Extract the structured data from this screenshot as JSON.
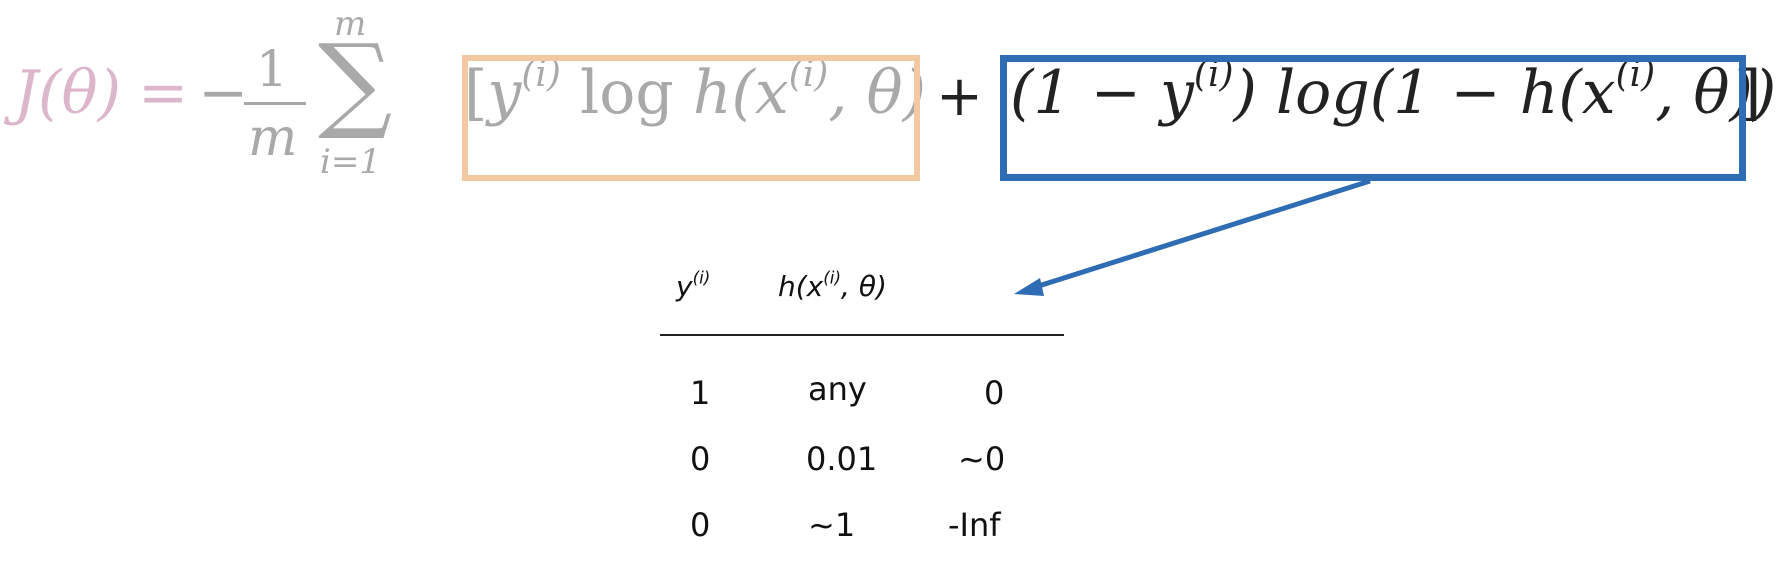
{
  "formula": {
    "lhs": "J(θ)",
    "equals": "=",
    "minus": "−",
    "frac_num": "1",
    "frac_den": "m",
    "sum_top": "m",
    "sum_symbol": "∑",
    "sum_bottom": "i=1",
    "term1": {
      "open": "[",
      "y": "y",
      "sup": "(i)",
      "log": " log ",
      "h": "h(x",
      "hsup": "(i)",
      "tail": ", θ)"
    },
    "plus": "+",
    "term2": {
      "open": "(1 − y",
      "sup": "(i)",
      "mid": ") log(1 − h(x",
      "hsup": "(i)",
      "tail": ", θ))"
    },
    "close": "]"
  },
  "table": {
    "headers": [
      {
        "base": "y",
        "sup": "(i)"
      },
      {
        "base": "h(x",
        "sup": "(i)",
        "tail": ", θ)"
      }
    ],
    "rows": [
      [
        "1",
        "any",
        "0"
      ],
      [
        "0",
        "0.01",
        "~0"
      ],
      [
        "0",
        "~1",
        "-Inf"
      ]
    ]
  },
  "colors": {
    "orange_box": "#f3c9a4",
    "blue_box": "#2e6db4",
    "pink_text": "#dcb6cb",
    "gray_text": "#a9a9a9"
  }
}
